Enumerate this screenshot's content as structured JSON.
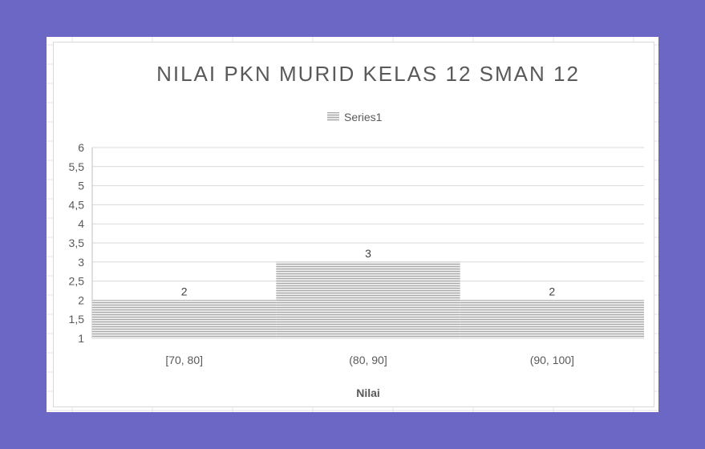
{
  "chart_data": {
    "type": "bar",
    "title": "NILAI PKN MURID KELAS 12 SMAN 12",
    "xlabel": "Nilai",
    "ylabel": "",
    "categories": [
      "[70, 80]",
      "(80, 90]",
      "(90, 100]"
    ],
    "series": [
      {
        "name": "Series1",
        "values": [
          2,
          3,
          2
        ]
      }
    ],
    "data_labels": [
      "2",
      "3",
      "2"
    ],
    "ylim": [
      1,
      6
    ],
    "yticks": [
      "1",
      "1,5",
      "2",
      "2,5",
      "3",
      "3,5",
      "4",
      "4,5",
      "5",
      "5,5",
      "6"
    ],
    "grid": true,
    "legend_position": "top",
    "bar_fill": "#c8c8c8",
    "bar_pattern": "horizontal-lines"
  }
}
